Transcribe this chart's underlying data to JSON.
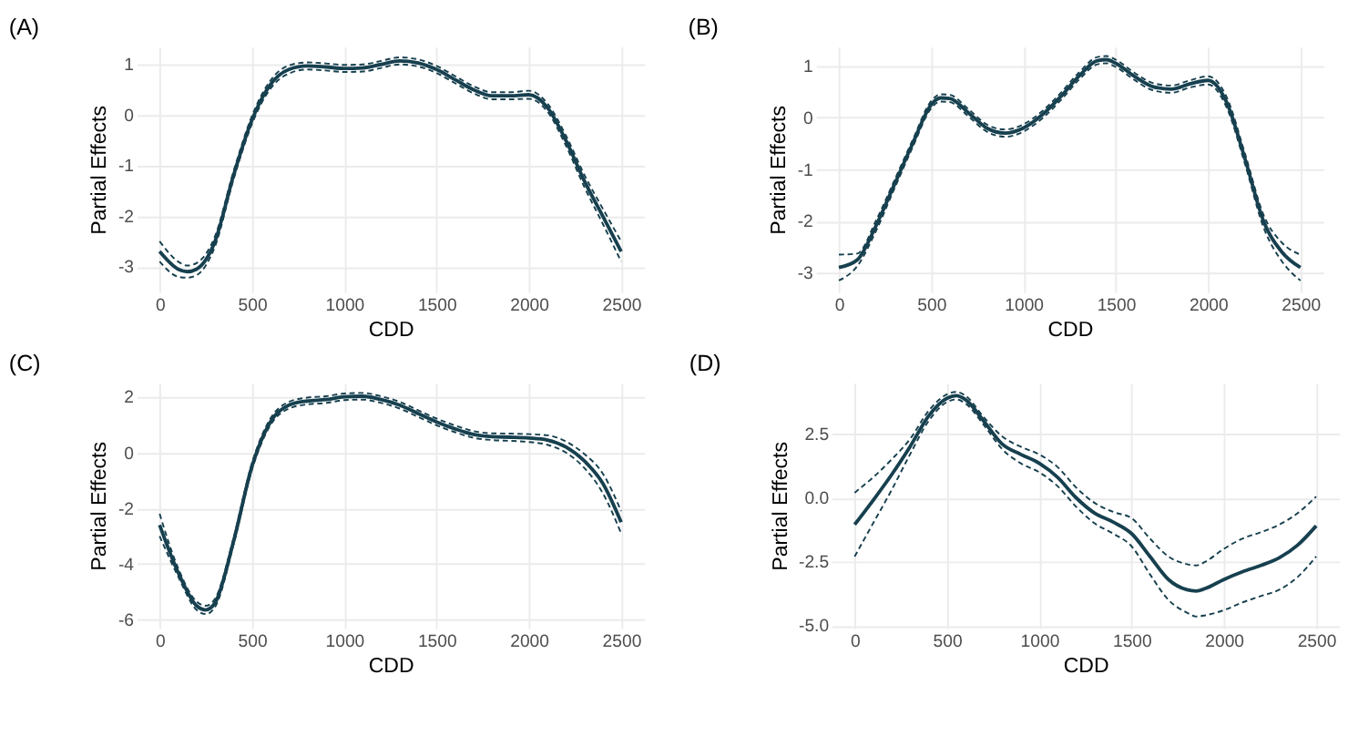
{
  "chart_data": [
    {
      "type": "line",
      "title": "(A)",
      "xlabel": "CDD",
      "ylabel": "Partial Effects",
      "xlim": [
        -125,
        2625
      ],
      "ylim": [
        -3.5,
        1.35
      ],
      "xticks": [
        0,
        500,
        1000,
        1500,
        2000,
        2500
      ],
      "yticks": [
        -3,
        -2,
        -1,
        0,
        1
      ],
      "grid": true,
      "x": [
        0,
        100,
        150,
        200,
        300,
        400,
        500,
        600,
        700,
        800,
        900,
        1000,
        1100,
        1200,
        1300,
        1400,
        1500,
        1600,
        1700,
        1800,
        1900,
        2000,
        2100,
        2200,
        2300,
        2400,
        2500
      ],
      "series": [
        {
          "color": "#17404f",
          "line_style": "solid",
          "values": [
            -2.7,
            -3.05,
            -3.1,
            -3.05,
            -2.5,
            -1.2,
            -0.1,
            0.6,
            0.9,
            0.97,
            0.95,
            0.92,
            0.93,
            1.0,
            1.07,
            1.03,
            0.9,
            0.7,
            0.5,
            0.38,
            0.38,
            0.4,
            0.15,
            -0.5,
            -1.3,
            -2.0,
            -2.7
          ]
        },
        {
          "color": "#17404f",
          "line_style": "dashed",
          "values": [
            -2.9,
            -3.2,
            -3.22,
            -3.17,
            -2.6,
            -1.28,
            -0.18,
            0.52,
            0.82,
            0.9,
            0.88,
            0.85,
            0.86,
            0.93,
            1.0,
            0.96,
            0.83,
            0.63,
            0.43,
            0.31,
            0.31,
            0.32,
            0.07,
            -0.6,
            -1.42,
            -2.15,
            -2.9
          ]
        },
        {
          "color": "#17404f",
          "line_style": "dashed",
          "values": [
            -2.5,
            -2.9,
            -2.98,
            -2.93,
            -2.4,
            -1.12,
            -0.02,
            0.68,
            0.98,
            1.04,
            1.02,
            0.99,
            1.0,
            1.07,
            1.14,
            1.1,
            0.97,
            0.77,
            0.57,
            0.45,
            0.45,
            0.48,
            0.23,
            -0.4,
            -1.18,
            -1.85,
            -2.5
          ]
        }
      ]
    },
    {
      "type": "line",
      "title": "(B)",
      "xlabel": "CDD",
      "ylabel": "Partial Effects",
      "xlim": [
        -125,
        2625
      ],
      "ylim": [
        -3.37,
        1.37
      ],
      "xticks": [
        0,
        500,
        1000,
        1500,
        2000,
        2500
      ],
      "yticks": [
        -3,
        -2,
        -1,
        0,
        1
      ],
      "grid": true,
      "x": [
        0,
        100,
        200,
        300,
        400,
        500,
        550,
        600,
        700,
        800,
        900,
        1000,
        1100,
        1200,
        1300,
        1400,
        1450,
        1500,
        1600,
        1700,
        1800,
        1900,
        2000,
        2100,
        2200,
        2300,
        2400,
        2500
      ],
      "series": [
        {
          "color": "#17404f",
          "line_style": "solid",
          "values": [
            -2.9,
            -2.75,
            -2.1,
            -1.3,
            -0.5,
            0.25,
            0.38,
            0.37,
            0.1,
            -0.2,
            -0.3,
            -0.2,
            0.05,
            0.4,
            0.8,
            1.1,
            1.12,
            1.05,
            0.8,
            0.6,
            0.55,
            0.65,
            0.72,
            0.3,
            -0.8,
            -2.0,
            -2.6,
            -2.9
          ]
        },
        {
          "color": "#17404f",
          "line_style": "dashed",
          "values": [
            -3.15,
            -2.87,
            -2.2,
            -1.38,
            -0.57,
            0.18,
            0.31,
            0.3,
            0.03,
            -0.27,
            -0.37,
            -0.27,
            -0.02,
            0.33,
            0.73,
            1.03,
            1.05,
            0.98,
            0.73,
            0.53,
            0.48,
            0.58,
            0.64,
            0.2,
            -0.9,
            -2.12,
            -2.78,
            -3.15
          ]
        },
        {
          "color": "#17404f",
          "line_style": "dashed",
          "values": [
            -2.65,
            -2.63,
            -2.0,
            -1.22,
            -0.43,
            0.32,
            0.45,
            0.44,
            0.17,
            -0.13,
            -0.23,
            -0.13,
            0.12,
            0.47,
            0.87,
            1.17,
            1.19,
            1.12,
            0.87,
            0.67,
            0.62,
            0.72,
            0.8,
            0.4,
            -0.7,
            -1.88,
            -2.42,
            -2.65
          ]
        }
      ]
    },
    {
      "type": "line",
      "title": "(C)",
      "xlabel": "CDD",
      "ylabel": "Partial Effects",
      "xlim": [
        -125,
        2625
      ],
      "ylim": [
        -6.3,
        2.5
      ],
      "xticks": [
        0,
        500,
        1000,
        1500,
        2000,
        2500
      ],
      "yticks": [
        -6,
        -4,
        -2,
        0,
        2
      ],
      "grid": true,
      "x": [
        0,
        100,
        200,
        250,
        300,
        400,
        500,
        600,
        700,
        800,
        900,
        1000,
        1100,
        1200,
        1300,
        1400,
        1500,
        1600,
        1700,
        1800,
        1900,
        2000,
        2100,
        2200,
        2300,
        2400,
        2500
      ],
      "series": [
        {
          "color": "#17404f",
          "line_style": "solid",
          "values": [
            -2.6,
            -4.3,
            -5.5,
            -5.65,
            -5.4,
            -3.2,
            -0.5,
            1.1,
            1.7,
            1.85,
            1.9,
            2.0,
            2.02,
            1.9,
            1.7,
            1.4,
            1.1,
            0.85,
            0.65,
            0.57,
            0.55,
            0.52,
            0.45,
            0.2,
            -0.3,
            -1.1,
            -2.5
          ]
        },
        {
          "color": "#17404f",
          "line_style": "dashed",
          "values": [
            -3.0,
            -4.45,
            -5.65,
            -5.8,
            -5.55,
            -3.32,
            -0.62,
            0.98,
            1.58,
            1.73,
            1.78,
            1.88,
            1.9,
            1.78,
            1.58,
            1.28,
            0.98,
            0.73,
            0.53,
            0.45,
            0.42,
            0.38,
            0.28,
            0.0,
            -0.55,
            -1.45,
            -2.9
          ]
        },
        {
          "color": "#17404f",
          "line_style": "dashed",
          "values": [
            -2.2,
            -4.15,
            -5.35,
            -5.5,
            -5.25,
            -3.08,
            -0.38,
            1.22,
            1.82,
            1.97,
            2.02,
            2.12,
            2.14,
            2.02,
            1.82,
            1.52,
            1.22,
            0.97,
            0.77,
            0.69,
            0.68,
            0.66,
            0.62,
            0.4,
            -0.05,
            -0.75,
            -2.1
          ]
        }
      ]
    },
    {
      "type": "line",
      "title": "(D)",
      "xlabel": "CDD",
      "ylabel": "Partial Effects",
      "xlim": [
        -125,
        2625
      ],
      "ylim": [
        -5.1,
        4.5
      ],
      "xticks": [
        0,
        500,
        1000,
        1500,
        2000,
        2500
      ],
      "yticks": [
        {
          "value": -5,
          "label": "-5.0"
        },
        {
          "value": -2.5,
          "label": "-2.5"
        },
        {
          "value": 0,
          "label": "0.0"
        },
        {
          "value": 2.5,
          "label": "2.5"
        }
      ],
      "grid": true,
      "x": [
        0,
        100,
        200,
        300,
        400,
        500,
        550,
        600,
        700,
        800,
        900,
        1000,
        1100,
        1200,
        1300,
        1400,
        1500,
        1600,
        1700,
        1800,
        1850,
        1900,
        2000,
        2100,
        2200,
        2300,
        2400,
        2500
      ],
      "series": [
        {
          "color": "#17404f",
          "line_style": "solid",
          "values": [
            -1.05,
            -0.1,
            0.9,
            2.0,
            3.2,
            3.9,
            4.0,
            3.85,
            3.0,
            2.1,
            1.7,
            1.35,
            0.8,
            0.0,
            -0.6,
            -0.95,
            -1.4,
            -2.3,
            -3.2,
            -3.6,
            -3.65,
            -3.55,
            -3.2,
            -2.9,
            -2.65,
            -2.35,
            -1.85,
            -1.1
          ]
        },
        {
          "color": "#17404f",
          "line_style": "dashed",
          "values": [
            -2.3,
            -1.0,
            0.3,
            1.7,
            3.0,
            3.75,
            3.85,
            3.7,
            2.85,
            1.9,
            1.35,
            1.0,
            0.45,
            -0.35,
            -1.0,
            -1.4,
            -1.9,
            -3.0,
            -4.0,
            -4.5,
            -4.65,
            -4.6,
            -4.4,
            -4.1,
            -3.85,
            -3.6,
            -3.1,
            -2.3
          ]
        },
        {
          "color": "#17404f",
          "line_style": "dashed",
          "values": [
            0.2,
            0.8,
            1.5,
            2.3,
            3.4,
            4.05,
            4.15,
            4.0,
            3.15,
            2.4,
            2.0,
            1.7,
            1.2,
            0.4,
            -0.2,
            -0.55,
            -0.8,
            -1.6,
            -2.3,
            -2.6,
            -2.65,
            -2.5,
            -2.0,
            -1.6,
            -1.35,
            -1.05,
            -0.6,
            0.05
          ]
        }
      ]
    }
  ]
}
